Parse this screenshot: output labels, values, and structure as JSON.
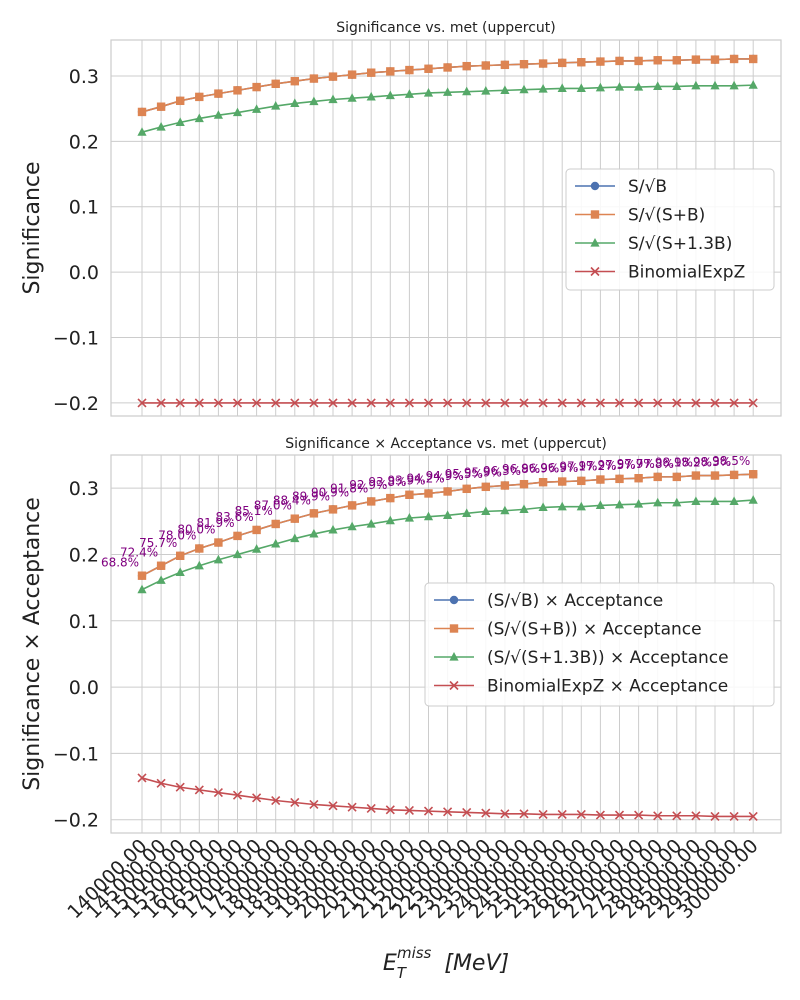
{
  "chart_data": [
    {
      "type": "line",
      "title": "Significance vs. met (uppercut)",
      "xlabel": "",
      "ylabel": "Significance",
      "ylim": [
        -0.22,
        0.355
      ],
      "yticks": [
        -0.2,
        -0.1,
        0.0,
        0.1,
        0.2,
        0.3
      ],
      "ytick_labels": [
        "−0.2",
        "−0.1",
        "0.0",
        "0.1",
        "0.2",
        "0.3"
      ],
      "grid": true,
      "legend_position": "center-right",
      "x": [
        140000,
        145000,
        150000,
        155000,
        160000,
        165000,
        170000,
        175000,
        180000,
        185000,
        190000,
        195000,
        200000,
        205000,
        210000,
        215000,
        220000,
        225000,
        230000,
        235000,
        240000,
        245000,
        250000,
        255000,
        260000,
        265000,
        270000,
        275000,
        280000,
        285000,
        290000,
        295000,
        300000
      ],
      "series": [
        {
          "name": "S/√B",
          "color": "#4c72b0",
          "marker": "circle",
          "values": [
            0.245,
            0.253,
            0.262,
            0.268,
            0.273,
            0.278,
            0.283,
            0.288,
            0.292,
            0.296,
            0.299,
            0.302,
            0.305,
            0.307,
            0.309,
            0.311,
            0.313,
            0.315,
            0.316,
            0.317,
            0.318,
            0.319,
            0.32,
            0.321,
            0.322,
            0.323,
            0.323,
            0.324,
            0.324,
            0.325,
            0.325,
            0.326,
            0.326
          ]
        },
        {
          "name": "S/√(S+B)",
          "color": "#dd8452",
          "marker": "square",
          "values": [
            0.245,
            0.253,
            0.262,
            0.268,
            0.273,
            0.278,
            0.283,
            0.288,
            0.292,
            0.296,
            0.299,
            0.302,
            0.305,
            0.307,
            0.309,
            0.311,
            0.313,
            0.315,
            0.316,
            0.317,
            0.318,
            0.319,
            0.32,
            0.321,
            0.322,
            0.323,
            0.323,
            0.324,
            0.324,
            0.325,
            0.325,
            0.326,
            0.326
          ]
        },
        {
          "name": "S/√(S+1.3B)",
          "color": "#55a868",
          "marker": "triangle",
          "values": [
            0.214,
            0.222,
            0.229,
            0.235,
            0.24,
            0.244,
            0.249,
            0.254,
            0.258,
            0.261,
            0.264,
            0.266,
            0.268,
            0.27,
            0.272,
            0.274,
            0.275,
            0.276,
            0.277,
            0.278,
            0.279,
            0.28,
            0.281,
            0.281,
            0.282,
            0.283,
            0.283,
            0.284,
            0.284,
            0.285,
            0.285,
            0.285,
            0.286
          ]
        },
        {
          "name": "BinomialExpZ",
          "color": "#c44e52",
          "marker": "x",
          "values": [
            -0.2,
            -0.2,
            -0.2,
            -0.2,
            -0.2,
            -0.2,
            -0.2,
            -0.2,
            -0.2,
            -0.2,
            -0.2,
            -0.2,
            -0.2,
            -0.2,
            -0.2,
            -0.2,
            -0.2,
            -0.2,
            -0.2,
            -0.2,
            -0.2,
            -0.2,
            -0.2,
            -0.2,
            -0.2,
            -0.2,
            -0.2,
            -0.2,
            -0.2,
            -0.2,
            -0.2,
            -0.2,
            -0.2
          ]
        }
      ]
    },
    {
      "type": "line",
      "title": "Significance × Acceptance vs. met (uppercut)",
      "xlabel": "E_T^miss [MeV]",
      "xlabel_main": "E",
      "xlabel_sub": "T",
      "xlabel_sup": "miss",
      "xlabel_unit": "[MeV]",
      "ylabel": "Significance × Acceptance",
      "ylim": [
        -0.22,
        0.35
      ],
      "yticks": [
        -0.2,
        -0.1,
        0.0,
        0.1,
        0.2,
        0.3
      ],
      "ytick_labels": [
        "−0.2",
        "−0.1",
        "0.0",
        "0.1",
        "0.2",
        "0.3"
      ],
      "grid": true,
      "legend_position": "center-right",
      "x": [
        140000,
        145000,
        150000,
        155000,
        160000,
        165000,
        170000,
        175000,
        180000,
        185000,
        190000,
        195000,
        200000,
        205000,
        210000,
        215000,
        220000,
        225000,
        230000,
        235000,
        240000,
        245000,
        250000,
        255000,
        260000,
        265000,
        270000,
        275000,
        280000,
        285000,
        290000,
        295000,
        300000
      ],
      "xtick_labels": [
        "140000.00",
        "145000.00",
        "150000.00",
        "155000.00",
        "160000.00",
        "165000.00",
        "170000.00",
        "175000.00",
        "180000.00",
        "185000.00",
        "190000.00",
        "195000.00",
        "200000.00",
        "205000.00",
        "210000.00",
        "215000.00",
        "220000.00",
        "225000.00",
        "230000.00",
        "235000.00",
        "240000.00",
        "245000.00",
        "250000.00",
        "255000.00",
        "260000.00",
        "265000.00",
        "270000.00",
        "275000.00",
        "280000.00",
        "285000.00",
        "290000.00",
        "295000.00",
        "300000.00"
      ],
      "acceptance_labels": [
        "68.8%",
        "72.4%",
        "75.7%",
        "78.0%",
        "80.0%",
        "81.9%",
        "83.6%",
        "85.1%",
        "87.0%",
        "88.4%",
        "89.9%",
        "90.9%",
        "91.8%",
        "92.9%",
        "93.8%",
        "93.9%",
        "94.2%",
        "94.9%",
        "95.5%",
        "95.9%",
        "96.3%",
        "96.8%",
        "96.9%",
        "96.9%",
        "97.1%",
        "97.2%",
        "97.5%",
        "97.7%",
        "97.8%",
        "98.1%",
        "98.2%",
        "98.3%",
        "98.5%"
      ],
      "series": [
        {
          "name": "(S/√B) × Acceptance",
          "color": "#4c72b0",
          "marker": "circle",
          "values": [
            0.168,
            0.183,
            0.198,
            0.209,
            0.218,
            0.228,
            0.237,
            0.246,
            0.254,
            0.262,
            0.268,
            0.274,
            0.28,
            0.285,
            0.29,
            0.292,
            0.295,
            0.299,
            0.302,
            0.304,
            0.306,
            0.309,
            0.31,
            0.311,
            0.313,
            0.314,
            0.315,
            0.317,
            0.317,
            0.319,
            0.319,
            0.32,
            0.321
          ]
        },
        {
          "name": "(S/√(S+B)) × Acceptance",
          "color": "#dd8452",
          "marker": "square",
          "values": [
            0.168,
            0.183,
            0.198,
            0.209,
            0.218,
            0.228,
            0.237,
            0.246,
            0.254,
            0.262,
            0.268,
            0.274,
            0.28,
            0.285,
            0.29,
            0.292,
            0.295,
            0.299,
            0.302,
            0.304,
            0.306,
            0.309,
            0.31,
            0.311,
            0.313,
            0.314,
            0.315,
            0.317,
            0.317,
            0.319,
            0.319,
            0.32,
            0.321
          ]
        },
        {
          "name": "(S/√(S+1.3B)) × Acceptance",
          "color": "#55a868",
          "marker": "triangle",
          "values": [
            0.147,
            0.161,
            0.173,
            0.183,
            0.192,
            0.2,
            0.208,
            0.216,
            0.224,
            0.231,
            0.237,
            0.242,
            0.246,
            0.251,
            0.255,
            0.257,
            0.259,
            0.262,
            0.265,
            0.266,
            0.268,
            0.271,
            0.272,
            0.272,
            0.274,
            0.275,
            0.276,
            0.278,
            0.278,
            0.28,
            0.28,
            0.28,
            0.282
          ]
        },
        {
          "name": "BinomialExpZ × Acceptance",
          "color": "#c44e52",
          "marker": "x",
          "values": [
            -0.137,
            -0.145,
            -0.151,
            -0.155,
            -0.159,
            -0.163,
            -0.167,
            -0.171,
            -0.174,
            -0.177,
            -0.179,
            -0.181,
            -0.183,
            -0.185,
            -0.186,
            -0.187,
            -0.188,
            -0.189,
            -0.19,
            -0.191,
            -0.191,
            -0.192,
            -0.192,
            -0.192,
            -0.193,
            -0.193,
            -0.193,
            -0.194,
            -0.194,
            -0.194,
            -0.195,
            -0.195,
            -0.195
          ]
        }
      ]
    }
  ]
}
